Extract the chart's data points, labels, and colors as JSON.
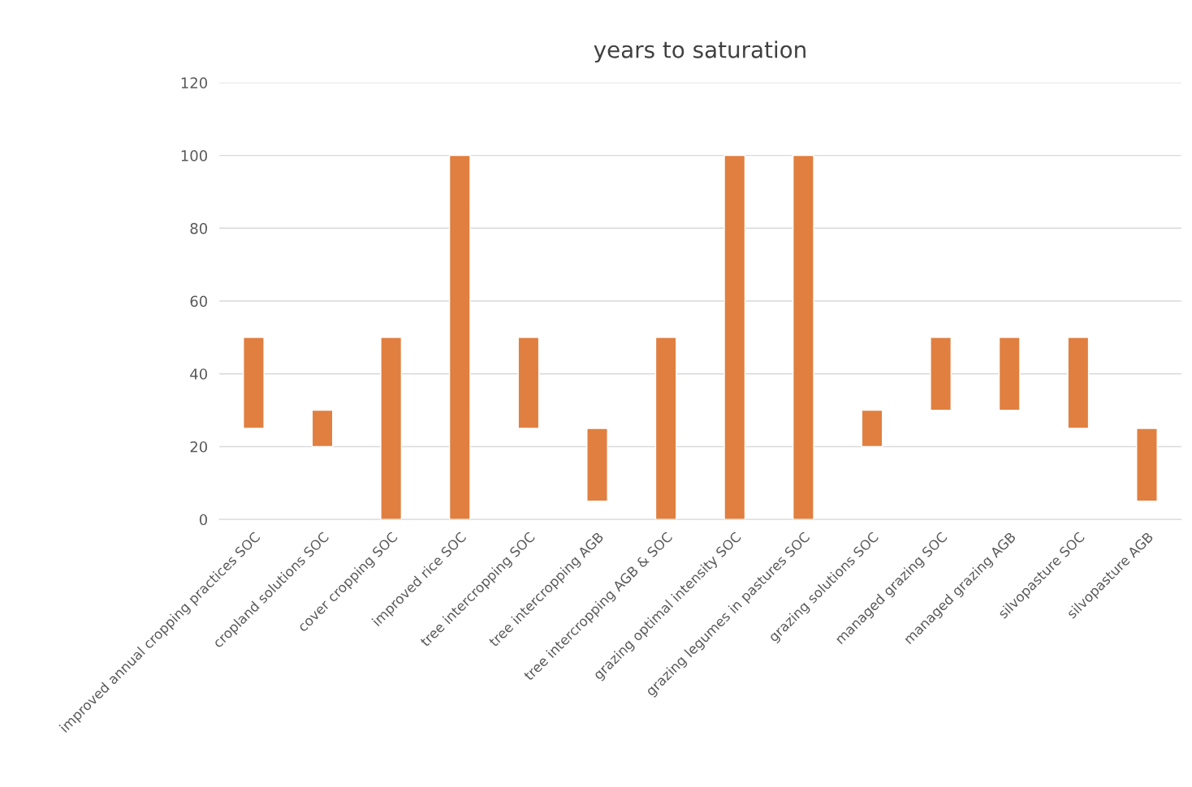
{
  "chart_data": {
    "type": "bar",
    "title": "years to saturation",
    "categories": [
      "improved annual cropping practices SOC",
      "cropland solutions SOC",
      "cover cropping SOC",
      "improved rice SOC",
      "tree intercropping SOC",
      "tree intercropping AGB",
      "tree intercropping AGB & SOC",
      "grazing optimal intensity SOC",
      "grazing legumes in pastures SOC",
      "grazing solutions SOC",
      "managed grazing SOC",
      "managed grazing AGB",
      "silvopasture SOC",
      "silvopasture AGB"
    ],
    "base": [
      25,
      20,
      0,
      0,
      25,
      5,
      0,
      0,
      0,
      20,
      30,
      30,
      25,
      5
    ],
    "values": [
      25,
      10,
      50,
      100,
      25,
      20,
      50,
      100,
      100,
      10,
      20,
      20,
      25,
      20
    ],
    "color": "#e07f3f",
    "ylim": [
      0,
      120
    ],
    "yticks": [
      0,
      20,
      40,
      60,
      80,
      100,
      120
    ],
    "grid": "y"
  }
}
